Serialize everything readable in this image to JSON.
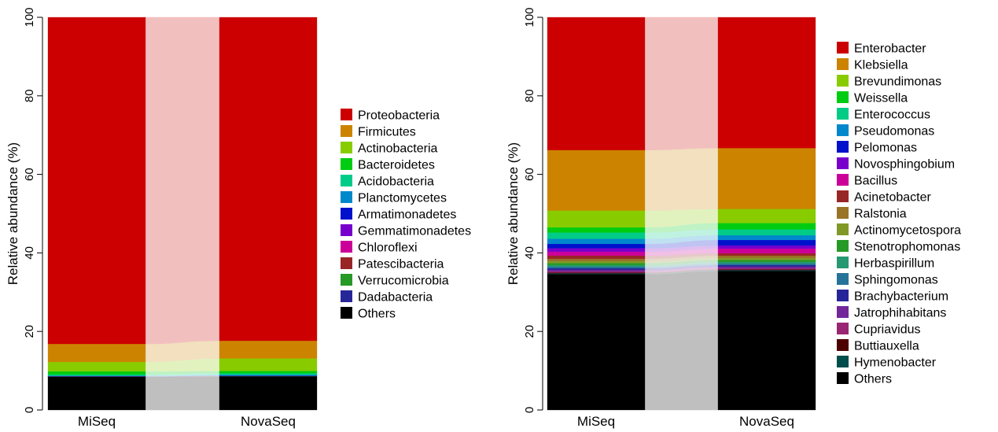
{
  "chart_data": [
    {
      "type": "bar",
      "subtype": "stacked-alluvial",
      "title": "",
      "xlabel": "",
      "ylabel": "Relative abundance (%)",
      "ylim": [
        0,
        100
      ],
      "yticks": [
        0,
        20,
        40,
        60,
        80,
        100
      ],
      "grid": false,
      "legend_position": "right",
      "categories": [
        "MiSeq",
        "NovaSeq"
      ],
      "series": [
        {
          "name": "Proteobacteria",
          "color": "#cc0000",
          "values": [
            83.2,
            82.3
          ]
        },
        {
          "name": "Firmicutes",
          "color": "#cc8400",
          "values": [
            4.6,
            4.5
          ]
        },
        {
          "name": "Actinobacteria",
          "color": "#88cc00",
          "values": [
            2.4,
            3.2
          ]
        },
        {
          "name": "Bacteroidetes",
          "color": "#00cc11",
          "values": [
            0.8,
            0.6
          ]
        },
        {
          "name": "Acidobacteria",
          "color": "#00cc88",
          "values": [
            0.3,
            0.4
          ]
        },
        {
          "name": "Planctomycetes",
          "color": "#0088cc",
          "values": [
            0.1,
            0.2
          ]
        },
        {
          "name": "Armatimonadetes",
          "color": "#0011cc",
          "values": [
            0.03,
            0.03
          ]
        },
        {
          "name": "Gemmatimonadetes",
          "color": "#7700cc",
          "values": [
            0.03,
            0.03
          ]
        },
        {
          "name": "Chloroflexi",
          "color": "#cc0099",
          "values": [
            0.02,
            0.02
          ]
        },
        {
          "name": "Patescibacteria",
          "color": "#992626",
          "values": [
            0.02,
            0.02
          ]
        },
        {
          "name": "Verrucomicrobia",
          "color": "#269926",
          "values": [
            0.02,
            0.02
          ]
        },
        {
          "name": "Dadabacteria",
          "color": "#262699",
          "values": [
            0.01,
            0.01
          ]
        },
        {
          "name": "Others",
          "color": "#000000",
          "values": [
            8.5,
            8.6
          ]
        }
      ]
    },
    {
      "type": "bar",
      "subtype": "stacked-alluvial",
      "title": "",
      "xlabel": "",
      "ylabel": "Relative abundance (%)",
      "ylim": [
        0,
        100
      ],
      "yticks": [
        0,
        20,
        40,
        60,
        80,
        100
      ],
      "grid": false,
      "legend_position": "right",
      "categories": [
        "MiSeq",
        "NovaSeq"
      ],
      "series": [
        {
          "name": "Enterobacter",
          "color": "#cc0000",
          "values": [
            33.8,
            33.3
          ]
        },
        {
          "name": "Klebsiella",
          "color": "#cc8400",
          "values": [
            15.4,
            15.5
          ]
        },
        {
          "name": "Brevundimonas",
          "color": "#88cc00",
          "values": [
            4.3,
            3.6
          ]
        },
        {
          "name": "Weissella",
          "color": "#00cc11",
          "values": [
            1.3,
            1.6
          ]
        },
        {
          "name": "Enterococcus",
          "color": "#00cc88",
          "values": [
            1.6,
            1.5
          ]
        },
        {
          "name": "Pseudomonas",
          "color": "#0088cc",
          "values": [
            1.3,
            1.2
          ]
        },
        {
          "name": "Pelomonas",
          "color": "#0011cc",
          "values": [
            1.1,
            1.4
          ]
        },
        {
          "name": "Novosphingobium",
          "color": "#7700cc",
          "values": [
            0.9,
            0.8
          ]
        },
        {
          "name": "Bacillus",
          "color": "#cc0099",
          "values": [
            1.0,
            1.2
          ]
        },
        {
          "name": "Acinetobacter",
          "color": "#992626",
          "values": [
            0.8,
            0.6
          ]
        },
        {
          "name": "Ralstonia",
          "color": "#997326",
          "values": [
            0.6,
            0.6
          ]
        },
        {
          "name": "Actinomycetospora",
          "color": "#809926",
          "values": [
            0.5,
            0.5
          ]
        },
        {
          "name": "Stenotrophomonas",
          "color": "#269926",
          "values": [
            0.5,
            0.5
          ]
        },
        {
          "name": "Herbaspirillum",
          "color": "#269973",
          "values": [
            0.4,
            0.4
          ]
        },
        {
          "name": "Sphingomonas",
          "color": "#267399",
          "values": [
            0.4,
            0.4
          ]
        },
        {
          "name": "Brachybacterium",
          "color": "#262699",
          "values": [
            0.4,
            0.4
          ]
        },
        {
          "name": "Jatrophihabitans",
          "color": "#732699",
          "values": [
            0.4,
            0.4
          ]
        },
        {
          "name": "Cupriavidus",
          "color": "#992673",
          "values": [
            0.3,
            0.3
          ]
        },
        {
          "name": "Buttiauxella",
          "color": "#4d0000",
          "values": [
            0.2,
            0.2
          ]
        },
        {
          "name": "Hymenobacter",
          "color": "#004d4d",
          "values": [
            0.2,
            0.2
          ]
        },
        {
          "name": "Others",
          "color": "#000000",
          "values": [
            34.6,
            35.4
          ]
        }
      ]
    }
  ]
}
